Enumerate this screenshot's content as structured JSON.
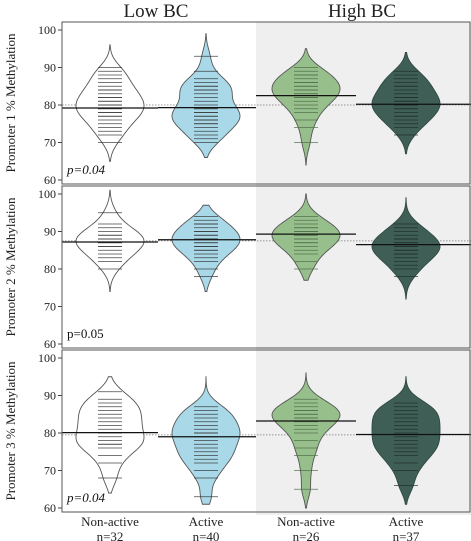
{
  "chart_data": {
    "type": "bean",
    "group_labels": [
      "Low BC",
      "High BC"
    ],
    "y_range": [
      60,
      100
    ],
    "y_ticks": [
      60,
      70,
      80,
      90,
      100
    ],
    "categories": [
      {
        "label": "Non-active",
        "n": "n=32",
        "fill": "#ffffff"
      },
      {
        "label": "Active",
        "n": "n=40",
        "fill": "#a9d9e8"
      },
      {
        "label": "Non-active",
        "n": "n=26",
        "fill": "#97bf8c"
      },
      {
        "label": "Active",
        "n": "n=37",
        "fill": "#3f5e55"
      }
    ],
    "panels": [
      {
        "ylabel": "Promoter 1 % Methylation",
        "pvalue": "p=0.04",
        "pvalue_italic": true,
        "overall_mean": 80,
        "beans": [
          {
            "mean": 79.2,
            "range": [
              65,
              96
            ],
            "values": [
              70,
              72,
              73,
              74,
              75,
              76,
              77,
              77,
              78,
              78,
              79,
              79,
              80,
              80,
              81,
              81,
              82,
              82,
              83,
              84,
              84,
              85,
              86,
              87,
              88,
              89,
              90
            ]
          },
          {
            "mean": 79.3,
            "range": [
              66,
              99
            ],
            "values": [
              70,
              71,
              72,
              73,
              74,
              75,
              75,
              76,
              76,
              77,
              77,
              78,
              78,
              79,
              79,
              80,
              81,
              82,
              83,
              84,
              84,
              85,
              85,
              86,
              87,
              89,
              93
            ]
          },
          {
            "mean": 82.5,
            "range": [
              64,
              95
            ],
            "values": [
              70,
              74,
              76,
              78,
              79,
              80,
              81,
              82,
              82,
              83,
              83,
              84,
              84,
              85,
              85,
              86,
              86,
              87,
              88,
              88,
              89,
              90
            ]
          },
          {
            "mean": 80.2,
            "range": [
              67,
              94
            ],
            "values": [
              72,
              74,
              75,
              76,
              77,
              77,
              78,
              79,
              79,
              80,
              80,
              81,
              81,
              82,
              82,
              83,
              84,
              85,
              85,
              86,
              87,
              88,
              89
            ]
          }
        ]
      },
      {
        "ylabel": "Promoter 2 % Methylation",
        "pvalue": "p=0.05",
        "pvalue_italic": false,
        "overall_mean": 87.5,
        "beans": [
          {
            "mean": 87.2,
            "range": [
              74,
              101
            ],
            "values": [
              80,
              82,
              83,
              84,
              85,
              86,
              86,
              87,
              87,
              88,
              88,
              89,
              89,
              90,
              91,
              92,
              95
            ]
          },
          {
            "mean": 87.8,
            "range": [
              74,
              97
            ],
            "values": [
              78,
              80,
              82,
              83,
              84,
              85,
              85,
              86,
              86,
              87,
              87,
              88,
              88,
              88,
              89,
              89,
              90,
              90,
              91,
              92,
              92,
              93,
              94
            ]
          },
          {
            "mean": 89.3,
            "range": [
              77,
              100
            ],
            "values": [
              80,
              82,
              84,
              85,
              86,
              87,
              87,
              88,
              88,
              89,
              89,
              90,
              90,
              91,
              91,
              92,
              93,
              94
            ]
          },
          {
            "mean": 86.5,
            "range": [
              72,
              99
            ],
            "values": [
              78,
              80,
              81,
              82,
              83,
              84,
              84,
              85,
              85,
              86,
              86,
              87,
              87,
              88,
              88,
              89,
              90,
              91,
              92
            ]
          }
        ]
      },
      {
        "ylabel": "Promoter 3 % Methylation",
        "pvalue": "p=0.04",
        "pvalue_italic": true,
        "overall_mean": 79.5,
        "beans": [
          {
            "mean": 80.1,
            "range": [
              64,
              95
            ],
            "values": [
              68,
              72,
              74,
              76,
              77,
              77,
              78,
              79,
              80,
              81,
              82,
              83,
              84,
              85,
              86,
              87,
              88,
              89,
              91
            ]
          },
          {
            "mean": 79.0,
            "range": [
              61,
              95
            ],
            "values": [
              63,
              68,
              70,
              72,
              73,
              74,
              75,
              76,
              77,
              78,
              79,
              80,
              80,
              81,
              82,
              83,
              84,
              85,
              86,
              87
            ]
          },
          {
            "mean": 83.2,
            "range": [
              60,
              96
            ],
            "values": [
              65,
              70,
              74,
              76,
              78,
              80,
              81,
              82,
              83,
              84,
              84,
              85,
              85,
              86,
              86,
              87,
              88,
              89
            ]
          },
          {
            "mean": 79.6,
            "range": [
              61,
              95
            ],
            "values": [
              66,
              70,
              72,
              74,
              75,
              76,
              77,
              78,
              79,
              80,
              81,
              82,
              83,
              84,
              85,
              86,
              87,
              88
            ]
          }
        ]
      }
    ]
  }
}
